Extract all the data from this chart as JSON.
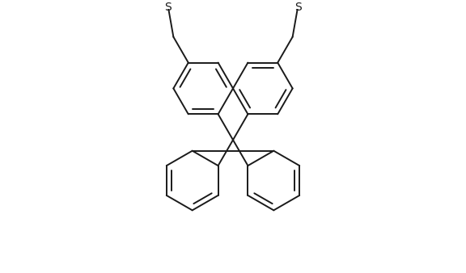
{
  "bg_color": "#ffffff",
  "line_color": "#1a1a1a",
  "line_width": 1.4,
  "figsize": [
    5.76,
    3.38
  ],
  "dpi": 100,
  "font_size": 9,
  "S_label": "S"
}
